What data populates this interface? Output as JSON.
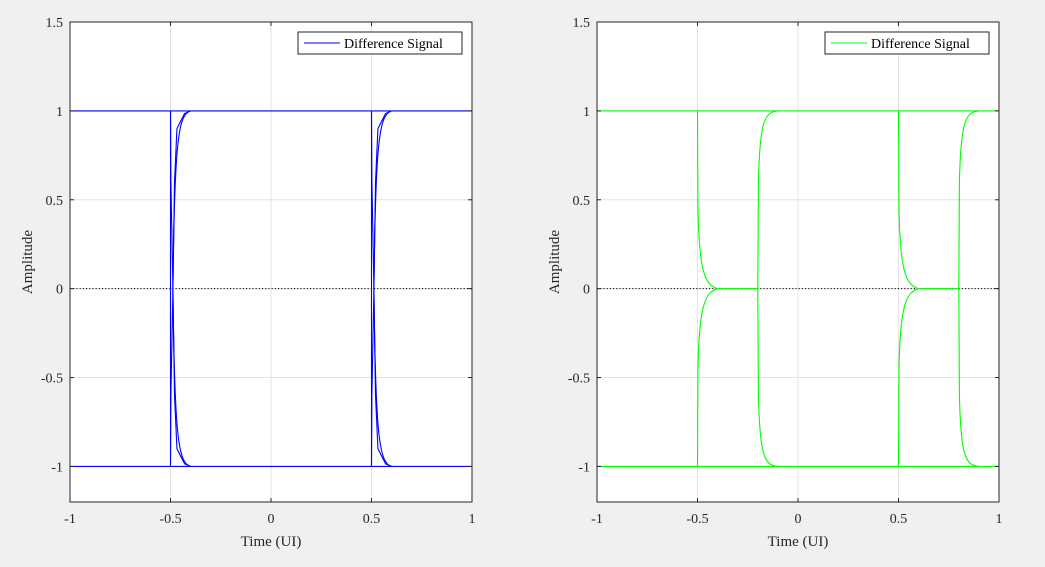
{
  "chart_data": [
    {
      "type": "line",
      "title": "",
      "xlabel": "Time (UI)",
      "ylabel": "Amplitude",
      "xlim": [
        -1,
        1
      ],
      "ylim": [
        -1.2,
        1.5
      ],
      "xticks": [
        -1,
        -0.5,
        0,
        0.5,
        1
      ],
      "xticklabels": [
        "-1",
        "-0.5",
        "0",
        "0.5",
        "1"
      ],
      "yticks": [
        -1,
        -0.5,
        0,
        0.5,
        1,
        1.5
      ],
      "yticklabels": [
        "-1",
        "-0.5",
        "0",
        "0.5",
        "1",
        "1.5"
      ],
      "grid": true,
      "legend_position": "top-right",
      "series": [
        {
          "name": "Difference Signal",
          "color": "#0000ff",
          "transitions": [
            {
              "start": -0.5,
              "end": -0.4
            },
            {
              "start": 0.5,
              "end": 0.6
            }
          ]
        }
      ],
      "reference_line": {
        "y": 0,
        "style": "dotted",
        "color": "#000000"
      }
    },
    {
      "type": "line",
      "title": "",
      "xlabel": "Time (UI)",
      "ylabel": "Amplitude",
      "xlim": [
        -1,
        1
      ],
      "ylim": [
        -1.2,
        1.5
      ],
      "xticks": [
        -1,
        -0.5,
        0,
        0.5,
        1
      ],
      "xticklabels": [
        "-1",
        "-0.5",
        "0",
        "0.5",
        "1"
      ],
      "yticks": [
        -1,
        -0.5,
        0,
        0.5,
        1,
        1.5
      ],
      "yticklabels": [
        "-1",
        "-0.5",
        "0",
        "0.5",
        "1",
        "1.5"
      ],
      "grid": true,
      "legend_position": "top-right",
      "series": [
        {
          "name": "Difference Signal",
          "color": "#00ff00",
          "transitions": [
            {
              "start": -0.5,
              "end": -0.4,
              "plateau_end": -0.2,
              "finish": -0.1
            },
            {
              "start": 0.5,
              "end": 0.6,
              "plateau_end": 0.8,
              "finish": 0.9
            }
          ]
        }
      ],
      "reference_line": {
        "y": 0,
        "style": "dotted",
        "color": "#000000"
      }
    }
  ]
}
